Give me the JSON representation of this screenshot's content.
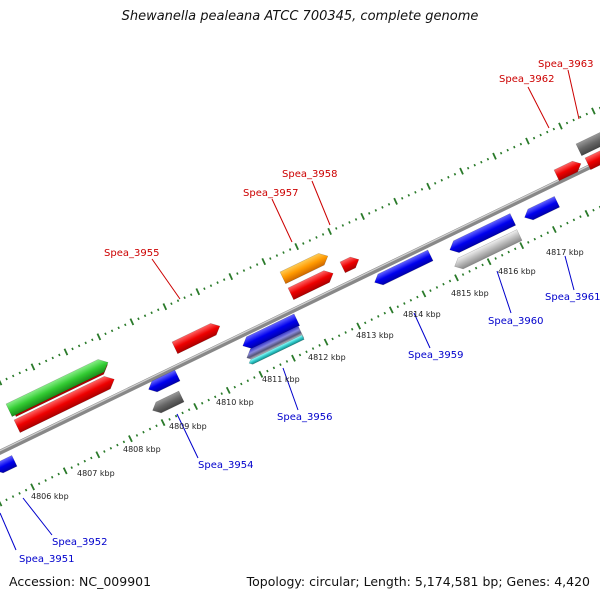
{
  "title": "Shewanella pealeana ATCC 700345, complete genome",
  "accession_label": "Accession: NC_009901",
  "summary_label": "Topology: circular; Length: 5,174,581 bp; Genes: 4,420",
  "colors": {
    "forward_label": "#cc0000",
    "reverse_label": "#0000cc",
    "backbone": "#7a7a7a",
    "tick": "#2a7a2a"
  },
  "kbp_ticks": [
    "4806 kbp",
    "4807 kbp",
    "4808 kbp",
    "4809 kbp",
    "4810 kbp",
    "4811 kbp",
    "4812 kbp",
    "4813 kbp",
    "4814 kbp",
    "4815 kbp",
    "4816 kbp",
    "4817 kbp"
  ],
  "forward_genes": [
    "Spea_3955",
    "Spea_3957",
    "Spea_3958",
    "Spea_3962",
    "Spea_3963"
  ],
  "reverse_genes": [
    "Spea_3951",
    "Spea_3952",
    "Spea_3954",
    "Spea_3956",
    "Spea_3959",
    "Spea_3960",
    "Spea_3961"
  ]
}
